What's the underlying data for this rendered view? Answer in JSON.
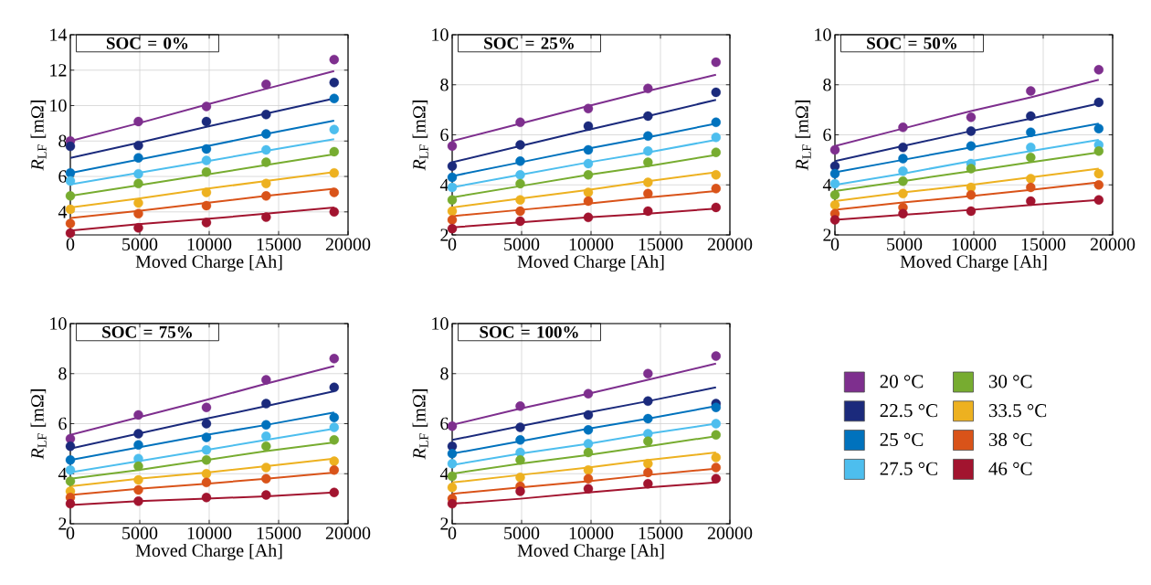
{
  "chart_data": [
    {
      "type": "scatter",
      "title": "SOC = 0%",
      "xlabel": "Moved Charge [Ah]",
      "ylabel": "*R*$_{LF}$ [mΩ]",
      "x": [
        0,
        4900,
        9800,
        14100,
        19000
      ],
      "xlim": [
        0,
        20000
      ],
      "ylim": [
        2.7,
        14
      ],
      "xticks": [
        0,
        5000,
        10000,
        15000,
        20000
      ],
      "yticks": [
        4,
        6,
        8,
        10,
        12,
        14
      ],
      "grid": true,
      "marker": "circle",
      "series": [
        {
          "color": "#7e2f8e",
          "values": [
            8.0,
            9.1,
            9.95,
            11.2,
            12.6
          ]
        },
        {
          "color": "#1b2a7c",
          "values": [
            7.7,
            7.75,
            9.1,
            9.5,
            11.3
          ]
        },
        {
          "color": "#0072bd",
          "values": [
            6.2,
            7.05,
            7.55,
            8.4,
            10.4
          ]
        },
        {
          "color": "#4dbeee",
          "values": [
            5.75,
            6.15,
            6.9,
            7.5,
            8.65
          ]
        },
        {
          "color": "#77ac30",
          "values": [
            4.9,
            5.6,
            6.25,
            6.8,
            7.4
          ]
        },
        {
          "color": "#edb120",
          "values": [
            4.15,
            4.5,
            5.1,
            5.6,
            6.2
          ]
        },
        {
          "color": "#d95319",
          "values": [
            3.35,
            3.9,
            4.35,
            4.9,
            5.1
          ]
        },
        {
          "color": "#a2142f",
          "values": [
            2.8,
            3.1,
            3.4,
            3.7,
            4.0
          ]
        },
        {
          "type": "line",
          "marker": "none",
          "color": "#7e2f8e",
          "values": [
            8.0,
            9.0,
            10.05,
            10.95,
            11.95
          ]
        },
        {
          "type": "line",
          "marker": "none",
          "color": "#1b2a7c",
          "values": [
            7.05,
            7.9,
            8.8,
            9.55,
            10.4
          ]
        },
        {
          "type": "line",
          "marker": "none",
          "color": "#0072bd",
          "values": [
            6.2,
            6.95,
            7.7,
            8.4,
            9.15
          ]
        },
        {
          "type": "line",
          "marker": "none",
          "color": "#4dbeee",
          "values": [
            5.55,
            6.2,
            6.85,
            7.45,
            8.1
          ]
        },
        {
          "type": "line",
          "marker": "none",
          "color": "#77ac30",
          "values": [
            4.9,
            5.5,
            6.1,
            6.65,
            7.25
          ]
        },
        {
          "type": "line",
          "marker": "none",
          "color": "#edb120",
          "values": [
            4.25,
            4.75,
            5.3,
            5.75,
            6.25
          ]
        },
        {
          "type": "line",
          "marker": "none",
          "color": "#d95319",
          "values": [
            3.65,
            4.05,
            4.5,
            4.9,
            5.3
          ]
        },
        {
          "type": "line",
          "marker": "none",
          "color": "#a2142f",
          "values": [
            2.95,
            3.3,
            3.6,
            3.9,
            4.25
          ]
        }
      ]
    },
    {
      "type": "scatter",
      "title": "SOC = 25%",
      "xlabel": "Moved Charge [Ah]",
      "ylabel": "*R*$_{LF}$ [mΩ]",
      "x": [
        0,
        4900,
        9800,
        14100,
        19000
      ],
      "xlim": [
        0,
        20000
      ],
      "ylim": [
        2,
        10
      ],
      "xticks": [
        0,
        5000,
        10000,
        15000,
        20000
      ],
      "yticks": [
        2,
        4,
        6,
        8,
        10
      ],
      "grid": true,
      "marker": "circle",
      "series": [
        {
          "color": "#7e2f8e",
          "values": [
            5.55,
            6.5,
            7.05,
            7.85,
            8.9
          ]
        },
        {
          "color": "#1b2a7c",
          "values": [
            4.75,
            5.6,
            6.35,
            6.75,
            7.7
          ]
        },
        {
          "color": "#0072bd",
          "values": [
            4.3,
            4.95,
            5.4,
            5.95,
            6.5
          ]
        },
        {
          "color": "#4dbeee",
          "values": [
            3.9,
            4.4,
            4.85,
            5.35,
            5.9
          ]
        },
        {
          "color": "#77ac30",
          "values": [
            3.4,
            4.05,
            4.4,
            4.9,
            5.3
          ]
        },
        {
          "color": "#edb120",
          "values": [
            2.95,
            3.4,
            3.7,
            4.1,
            4.4
          ]
        },
        {
          "color": "#d95319",
          "values": [
            2.6,
            2.95,
            3.35,
            3.65,
            3.85
          ]
        },
        {
          "color": "#a2142f",
          "values": [
            2.25,
            2.55,
            2.7,
            2.95,
            3.1
          ]
        },
        {
          "type": "line",
          "marker": "none",
          "color": "#7e2f8e",
          "values": [
            5.75,
            6.45,
            7.15,
            7.75,
            8.4
          ]
        },
        {
          "type": "line",
          "marker": "none",
          "color": "#1b2a7c",
          "values": [
            4.9,
            5.55,
            6.2,
            6.75,
            7.4
          ]
        },
        {
          "type": "line",
          "marker": "none",
          "color": "#0072bd",
          "values": [
            4.35,
            4.9,
            5.45,
            5.9,
            6.45
          ]
        },
        {
          "type": "line",
          "marker": "none",
          "color": "#4dbeee",
          "values": [
            3.9,
            4.4,
            4.9,
            5.3,
            5.8
          ]
        },
        {
          "type": "line",
          "marker": "none",
          "color": "#77ac30",
          "values": [
            3.5,
            3.95,
            4.4,
            4.75,
            5.2
          ]
        },
        {
          "type": "line",
          "marker": "none",
          "color": "#edb120",
          "values": [
            3.1,
            3.45,
            3.8,
            4.15,
            4.5
          ]
        },
        {
          "type": "line",
          "marker": "none",
          "color": "#d95319",
          "values": [
            2.75,
            3.0,
            3.25,
            3.5,
            3.75
          ]
        },
        {
          "type": "line",
          "marker": "none",
          "color": "#a2142f",
          "values": [
            2.3,
            2.5,
            2.7,
            2.85,
            3.05
          ]
        }
      ]
    },
    {
      "type": "scatter",
      "title": "SOC = 50%",
      "xlabel": "Moved Charge [Ah]",
      "ylabel": "*R*$_{LF}$ [mΩ]",
      "x": [
        0,
        4900,
        9800,
        14100,
        19000
      ],
      "xlim": [
        0,
        20000
      ],
      "ylim": [
        2,
        10
      ],
      "xticks": [
        0,
        5000,
        10000,
        15000,
        20000
      ],
      "yticks": [
        2,
        4,
        6,
        8,
        10
      ],
      "grid": true,
      "marker": "circle",
      "series": [
        {
          "color": "#7e2f8e",
          "values": [
            5.4,
            6.3,
            6.7,
            7.75,
            8.6
          ]
        },
        {
          "color": "#1b2a7c",
          "values": [
            4.75,
            5.5,
            6.15,
            6.75,
            7.3
          ]
        },
        {
          "color": "#0072bd",
          "values": [
            4.45,
            5.05,
            5.55,
            6.1,
            6.25
          ]
        },
        {
          "color": "#4dbeee",
          "values": [
            4.05,
            4.55,
            4.85,
            5.5,
            5.6
          ]
        },
        {
          "color": "#77ac30",
          "values": [
            3.6,
            4.15,
            4.65,
            5.1,
            5.35
          ]
        },
        {
          "color": "#edb120",
          "values": [
            3.2,
            3.65,
            3.9,
            4.25,
            4.45
          ]
        },
        {
          "color": "#d95319",
          "values": [
            2.85,
            3.1,
            3.6,
            3.9,
            4.0
          ]
        },
        {
          "color": "#a2142f",
          "values": [
            2.6,
            2.85,
            2.95,
            3.35,
            3.4
          ]
        },
        {
          "type": "line",
          "marker": "none",
          "color": "#7e2f8e",
          "values": [
            5.55,
            6.25,
            6.95,
            7.5,
            8.2
          ]
        },
        {
          "type": "line",
          "marker": "none",
          "color": "#1b2a7c",
          "values": [
            4.95,
            5.55,
            6.15,
            6.65,
            7.25
          ]
        },
        {
          "type": "line",
          "marker": "none",
          "color": "#0072bd",
          "values": [
            4.5,
            5.0,
            5.5,
            5.95,
            6.45
          ]
        },
        {
          "type": "line",
          "marker": "none",
          "color": "#4dbeee",
          "values": [
            4.0,
            4.45,
            4.95,
            5.35,
            5.8
          ]
        },
        {
          "type": "line",
          "marker": "none",
          "color": "#77ac30",
          "values": [
            3.75,
            4.15,
            4.55,
            4.9,
            5.3
          ]
        },
        {
          "type": "line",
          "marker": "none",
          "color": "#edb120",
          "values": [
            3.35,
            3.7,
            4.0,
            4.3,
            4.65
          ]
        },
        {
          "type": "line",
          "marker": "none",
          "color": "#d95319",
          "values": [
            3.0,
            3.3,
            3.55,
            3.8,
            4.1
          ]
        },
        {
          "type": "line",
          "marker": "none",
          "color": "#a2142f",
          "values": [
            2.6,
            2.8,
            3.0,
            3.2,
            3.4
          ]
        }
      ]
    },
    {
      "type": "scatter",
      "title": "SOC = 75%",
      "xlabel": "Moved Charge [Ah]",
      "ylabel": "*R*$_{LF}$ [mΩ]",
      "x": [
        0,
        4900,
        9800,
        14100,
        19000
      ],
      "xlim": [
        0,
        20000
      ],
      "ylim": [
        2,
        10
      ],
      "xticks": [
        0,
        5000,
        10000,
        15000,
        20000
      ],
      "yticks": [
        2,
        4,
        6,
        8,
        10
      ],
      "grid": true,
      "marker": "circle",
      "series": [
        {
          "color": "#7e2f8e",
          "values": [
            5.4,
            6.35,
            6.65,
            7.75,
            8.6
          ]
        },
        {
          "color": "#1b2a7c",
          "values": [
            5.1,
            5.6,
            6.0,
            6.8,
            7.45
          ]
        },
        {
          "color": "#0072bd",
          "values": [
            4.55,
            5.15,
            5.45,
            5.95,
            6.25
          ]
        },
        {
          "color": "#4dbeee",
          "values": [
            4.15,
            4.6,
            4.95,
            5.5,
            5.85
          ]
        },
        {
          "color": "#77ac30",
          "values": [
            3.7,
            4.3,
            4.55,
            5.1,
            5.35
          ]
        },
        {
          "color": "#edb120",
          "values": [
            3.3,
            3.75,
            4.0,
            4.25,
            4.5
          ]
        },
        {
          "color": "#d95319",
          "values": [
            3.05,
            3.35,
            3.65,
            3.8,
            4.15
          ]
        },
        {
          "color": "#a2142f",
          "values": [
            2.8,
            2.9,
            3.05,
            3.15,
            3.25
          ]
        },
        {
          "type": "line",
          "marker": "none",
          "color": "#7e2f8e",
          "values": [
            5.55,
            6.25,
            6.95,
            7.6,
            8.3
          ]
        },
        {
          "type": "line",
          "marker": "none",
          "color": "#1b2a7c",
          "values": [
            5.0,
            5.6,
            6.2,
            6.7,
            7.3
          ]
        },
        {
          "type": "line",
          "marker": "none",
          "color": "#0072bd",
          "values": [
            4.55,
            5.05,
            5.55,
            5.95,
            6.45
          ]
        },
        {
          "type": "line",
          "marker": "none",
          "color": "#4dbeee",
          "values": [
            4.05,
            4.5,
            4.95,
            5.35,
            5.8
          ]
        },
        {
          "type": "line",
          "marker": "none",
          "color": "#77ac30",
          "values": [
            3.8,
            4.15,
            4.55,
            4.9,
            5.25
          ]
        },
        {
          "type": "line",
          "marker": "none",
          "color": "#edb120",
          "values": [
            3.5,
            3.8,
            4.05,
            4.3,
            4.6
          ]
        },
        {
          "type": "line",
          "marker": "none",
          "color": "#d95319",
          "values": [
            3.15,
            3.4,
            3.6,
            3.8,
            4.05
          ]
        },
        {
          "type": "line",
          "marker": "none",
          "color": "#a2142f",
          "values": [
            2.75,
            2.9,
            3.0,
            3.1,
            3.25
          ]
        }
      ]
    },
    {
      "type": "scatter",
      "title": "SOC = 100%",
      "xlabel": "Moved Charge [Ah]",
      "ylabel": "*R*$_{LF}$ [mΩ]",
      "x": [
        0,
        4900,
        9800,
        14100,
        19000
      ],
      "xlim": [
        0,
        20000
      ],
      "ylim": [
        2,
        10
      ],
      "xticks": [
        0,
        5000,
        10000,
        15000,
        20000
      ],
      "yticks": [
        2,
        4,
        6,
        8,
        10
      ],
      "grid": true,
      "marker": "circle",
      "legend": "right",
      "series": [
        {
          "name": "20 °C",
          "color": "#7e2f8e",
          "values": [
            5.9,
            6.7,
            7.2,
            8.0,
            8.7
          ]
        },
        {
          "name": "22.5 °C",
          "color": "#1b2a7c",
          "values": [
            5.1,
            5.85,
            6.35,
            6.9,
            6.8
          ]
        },
        {
          "name": "25 °C",
          "color": "#0072bd",
          "values": [
            4.8,
            5.35,
            5.75,
            6.2,
            6.65
          ]
        },
        {
          "name": "27.5 °C",
          "color": "#4dbeee",
          "values": [
            4.4,
            4.85,
            5.2,
            5.6,
            6.0
          ]
        },
        {
          "name": "30 °C",
          "color": "#77ac30",
          "values": [
            3.9,
            4.55,
            4.85,
            5.3,
            5.55
          ]
        },
        {
          "name": "33.5 °C",
          "color": "#edb120",
          "values": [
            3.45,
            3.85,
            4.15,
            4.4,
            4.65
          ]
        },
        {
          "name": "38 °C",
          "color": "#d95319",
          "values": [
            3.0,
            3.5,
            3.8,
            4.05,
            4.25
          ]
        },
        {
          "name": "46 °C",
          "color": "#a2142f",
          "values": [
            2.8,
            3.3,
            3.4,
            3.6,
            3.8
          ]
        },
        {
          "type": "line",
          "marker": "none",
          "color": "#7e2f8e",
          "values": [
            5.95,
            6.6,
            7.2,
            7.75,
            8.4
          ]
        },
        {
          "type": "line",
          "marker": "none",
          "color": "#1b2a7c",
          "values": [
            5.35,
            5.9,
            6.45,
            6.9,
            7.45
          ]
        },
        {
          "type": "line",
          "marker": "none",
          "color": "#0072bd",
          "values": [
            4.8,
            5.3,
            5.8,
            6.2,
            6.7
          ]
        },
        {
          "type": "line",
          "marker": "none",
          "color": "#4dbeee",
          "values": [
            4.35,
            4.8,
            5.2,
            5.6,
            6.0
          ]
        },
        {
          "type": "line",
          "marker": "none",
          "color": "#77ac30",
          "values": [
            4.0,
            4.4,
            4.75,
            5.1,
            5.5
          ]
        },
        {
          "type": "line",
          "marker": "none",
          "color": "#edb120",
          "values": [
            3.65,
            3.95,
            4.25,
            4.55,
            4.85
          ]
        },
        {
          "type": "line",
          "marker": "none",
          "color": "#d95319",
          "values": [
            3.2,
            3.45,
            3.7,
            3.95,
            4.2
          ]
        },
        {
          "type": "line",
          "marker": "none",
          "color": "#a2142f",
          "values": [
            2.8,
            3.0,
            3.25,
            3.45,
            3.65
          ]
        }
      ]
    }
  ]
}
